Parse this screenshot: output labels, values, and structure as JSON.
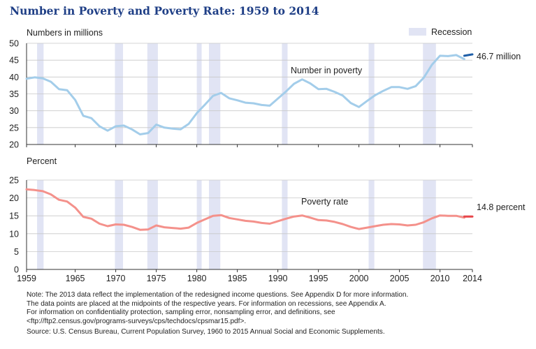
{
  "title": "Number in Poverty and Poverty Rate: 1959 to 2014",
  "legend": {
    "label": "Recession",
    "color": "#e1e4f4"
  },
  "notes": [
    "Note: The 2013 data reflect the implementation of the redesigned income questions. See Appendix D for more information.",
    "The data points are placed at the midpoints of the respective years. For information on recessions, see Appendix A.",
    "For information on confidentiality protection, sampling error, nonsampling error, and definitions, see",
    "<ftp://ftp2.census.gov/programs-surveys/cps/techdocs/cpsmar15.pdf>."
  ],
  "source": "Source: U.S. Census Bureau, Current Population Survey, 1960 to 2015 Annual Social and Economic Supplements.",
  "chart_data": [
    {
      "type": "line",
      "ylabel": "Numbers in millions",
      "ylim": [
        20,
        50
      ],
      "yticks": [
        20,
        25,
        30,
        35,
        40,
        45,
        50
      ],
      "series_label": "Number in poverty",
      "end_label": "46.7 million",
      "color": "#a3cdea",
      "end_color": "#1f5fa8",
      "x": [
        1959,
        1960,
        1961,
        1962,
        1963,
        1964,
        1965,
        1966,
        1967,
        1968,
        1969,
        1970,
        1971,
        1972,
        1973,
        1974,
        1975,
        1976,
        1977,
        1978,
        1979,
        1980,
        1981,
        1982,
        1983,
        1984,
        1985,
        1986,
        1987,
        1988,
        1989,
        1990,
        1991,
        1992,
        1993,
        1994,
        1995,
        1996,
        1997,
        1998,
        1999,
        2000,
        2001,
        2002,
        2003,
        2004,
        2005,
        2006,
        2007,
        2008,
        2009,
        2010,
        2011,
        2012,
        2013
      ],
      "values": [
        39.5,
        39.9,
        39.6,
        38.6,
        36.4,
        36.1,
        33.2,
        28.5,
        27.8,
        25.4,
        24.1,
        25.4,
        25.6,
        24.5,
        23.0,
        23.4,
        25.9,
        25.0,
        24.7,
        24.5,
        26.1,
        29.3,
        31.8,
        34.4,
        35.3,
        33.7,
        33.1,
        32.4,
        32.2,
        31.7,
        31.5,
        33.6,
        35.7,
        38.0,
        39.3,
        38.1,
        36.4,
        36.5,
        35.6,
        34.5,
        32.3,
        31.1,
        32.9,
        34.6,
        35.9,
        37.0,
        37.0,
        36.5,
        37.3,
        39.8,
        43.6,
        46.3,
        46.2,
        46.5,
        45.3
      ],
      "end_segment": {
        "x": [
          2013,
          2014
        ],
        "values": [
          46.3,
          46.7
        ]
      }
    },
    {
      "type": "line",
      "ylabel": "Percent",
      "ylim": [
        0,
        25
      ],
      "yticks": [
        0,
        5,
        10,
        15,
        20,
        25
      ],
      "series_label": "Poverty rate",
      "end_label": "14.8 percent",
      "color": "#f4918b",
      "end_color": "#e8474b",
      "x": [
        1959,
        1960,
        1961,
        1962,
        1963,
        1964,
        1965,
        1966,
        1967,
        1968,
        1969,
        1970,
        1971,
        1972,
        1973,
        1974,
        1975,
        1976,
        1977,
        1978,
        1979,
        1980,
        1981,
        1982,
        1983,
        1984,
        1985,
        1986,
        1987,
        1988,
        1989,
        1990,
        1991,
        1992,
        1993,
        1994,
        1995,
        1996,
        1997,
        1998,
        1999,
        2000,
        2001,
        2002,
        2003,
        2004,
        2005,
        2006,
        2007,
        2008,
        2009,
        2010,
        2011,
        2012,
        2013
      ],
      "values": [
        22.4,
        22.2,
        21.9,
        21.0,
        19.5,
        19.0,
        17.3,
        14.7,
        14.2,
        12.8,
        12.1,
        12.6,
        12.5,
        11.9,
        11.1,
        11.2,
        12.3,
        11.8,
        11.6,
        11.4,
        11.7,
        13.0,
        14.0,
        15.0,
        15.2,
        14.4,
        14.0,
        13.6,
        13.4,
        13.0,
        12.8,
        13.5,
        14.2,
        14.8,
        15.1,
        14.5,
        13.8,
        13.7,
        13.3,
        12.7,
        11.9,
        11.3,
        11.7,
        12.1,
        12.5,
        12.7,
        12.6,
        12.3,
        12.5,
        13.2,
        14.3,
        15.1,
        15.0,
        15.0,
        14.5
      ],
      "end_segment": {
        "x": [
          2013,
          2014
        ],
        "values": [
          14.8,
          14.8
        ]
      }
    }
  ],
  "x_axis": {
    "range": [
      1959,
      2014
    ],
    "tick_labels": [
      "1959",
      "1965",
      "1970",
      "1975",
      "1980",
      "1985",
      "1990",
      "1995",
      "2000",
      "2005",
      "2010",
      "2014"
    ],
    "tick_values": [
      1959,
      1965,
      1970,
      1975,
      1980,
      1985,
      1990,
      1995,
      2000,
      2005,
      2010,
      2014
    ]
  },
  "recessions": [
    [
      1960.3,
      1961.1
    ],
    [
      1969.9,
      1970.9
    ],
    [
      1973.9,
      1975.2
    ],
    [
      1980.0,
      1980.6
    ],
    [
      1981.5,
      1982.9
    ],
    [
      1990.5,
      1991.2
    ],
    [
      2001.2,
      2001.9
    ],
    [
      2007.9,
      2009.5
    ]
  ]
}
